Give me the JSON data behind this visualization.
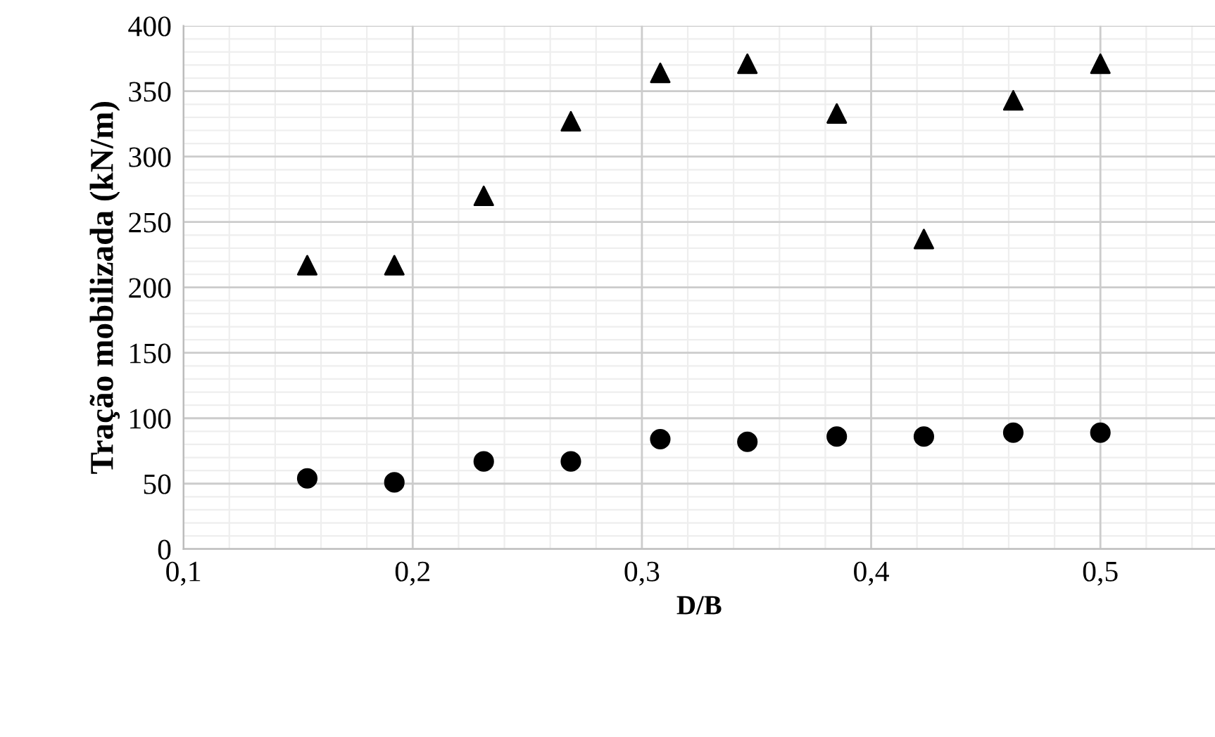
{
  "chart_data": {
    "type": "scatter",
    "xlabel": "D/B",
    "ylabel": "Tração mobilizada (kN/m)",
    "x": [
      0.154,
      0.192,
      0.231,
      0.269,
      0.308,
      0.346,
      0.385,
      0.423,
      0.462,
      0.5
    ],
    "series": [
      {
        "color": "#000000",
        "marker": "triangle",
        "values": [
          217,
          217,
          270,
          327,
          364,
          371,
          333,
          237,
          343,
          371
        ]
      },
      {
        "color": "#000000",
        "marker": "circle",
        "values": [
          54,
          51,
          67,
          67,
          84,
          82,
          86,
          86,
          89,
          89
        ]
      }
    ],
    "xlim": [
      0.1,
      0.55
    ],
    "xticks": [
      {
        "value": 0.1,
        "label": "0,1"
      },
      {
        "value": 0.2,
        "label": "0,2"
      },
      {
        "value": 0.3,
        "label": "0,3"
      },
      {
        "value": 0.4,
        "label": "0,4"
      },
      {
        "value": 0.5,
        "label": "0,5"
      }
    ],
    "ylim": [
      0,
      400
    ],
    "yticks": [
      0,
      50,
      100,
      150,
      200,
      250,
      300,
      350,
      400
    ],
    "grid": true
  }
}
